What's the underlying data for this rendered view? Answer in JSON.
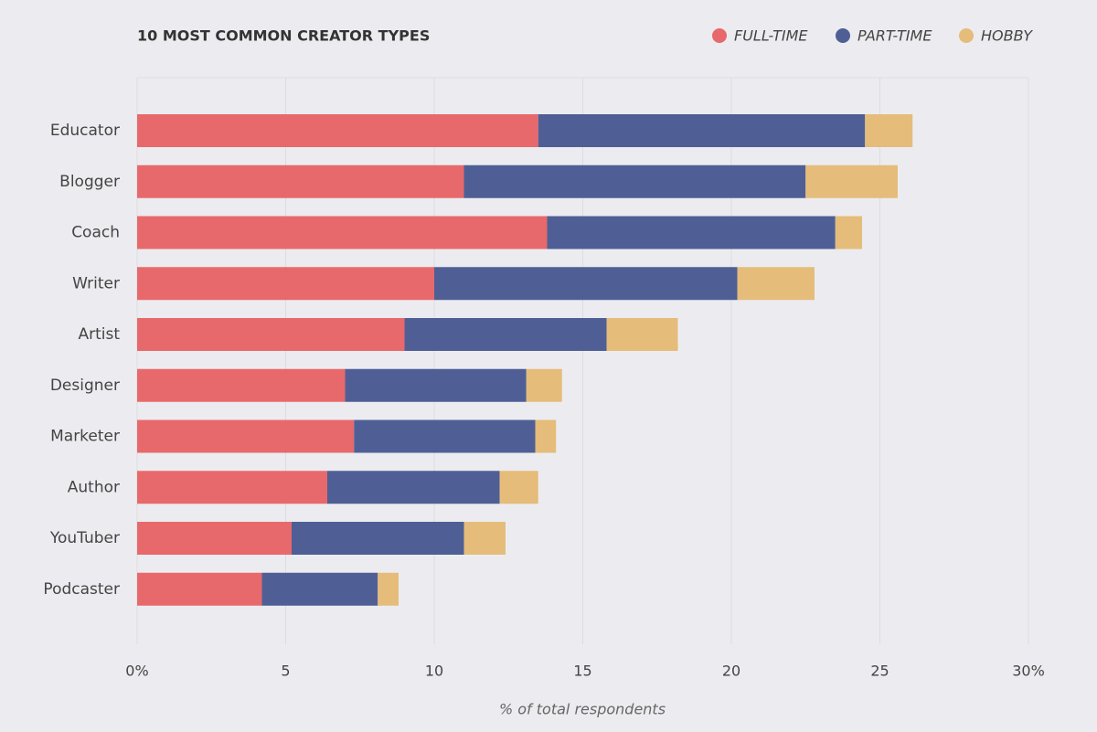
{
  "chart_data": {
    "type": "stacked-bar-horizontal",
    "title": "10 MOST COMMON CREATOR TYPES",
    "x_label": "% of total respondents",
    "categories": [
      "Educator",
      "Blogger",
      "Coach",
      "Writer",
      "Artist",
      "Designer",
      "Marketer",
      "Author",
      "YouTuber",
      "Podcaster"
    ],
    "series": [
      {
        "name": "FULL-TIME",
        "color": "#e8696b",
        "values": [
          13.5,
          11.0,
          13.8,
          10.0,
          9.0,
          7.0,
          7.3,
          6.4,
          5.2,
          4.2
        ]
      },
      {
        "name": "PART-TIME",
        "color": "#4f5f96",
        "values": [
          11.0,
          11.5,
          9.7,
          10.2,
          6.8,
          6.1,
          6.1,
          5.8,
          5.8,
          3.9
        ]
      },
      {
        "name": "HOBBY",
        "color": "#e5bc7a",
        "values": [
          1.6,
          3.1,
          0.9,
          2.6,
          2.4,
          1.2,
          0.7,
          1.3,
          1.4,
          0.7
        ]
      }
    ],
    "xlim": [
      0,
      30
    ],
    "xticks": [
      {
        "value": 0,
        "label": "0%"
      },
      5,
      10,
      15,
      20,
      25,
      {
        "value": 30,
        "label": "30%"
      }
    ],
    "grid": true
  }
}
